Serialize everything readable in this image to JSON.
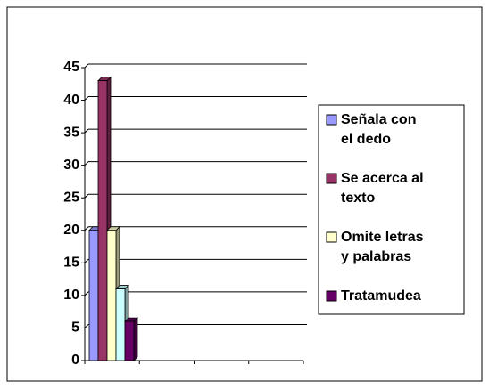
{
  "chart_data": {
    "type": "bar",
    "categories": [
      null,
      null,
      null,
      null
    ],
    "series": [
      {
        "name": "Señala con el dedo",
        "color": "#9999ff",
        "values": [
          20,
          null,
          null,
          null
        ]
      },
      {
        "name": "Se acerca al texto",
        "color": "#993366",
        "values": [
          43,
          null,
          null,
          null
        ]
      },
      {
        "name": "Omite letras y palabras",
        "color": "#ffffcc",
        "values": [
          20,
          null,
          null,
          null
        ]
      },
      {
        "color": "#ccffff",
        "values": [
          11,
          null,
          null,
          null
        ]
      },
      {
        "name": "Tratamudea",
        "color": "#660066",
        "values": [
          6,
          null,
          null,
          null
        ]
      }
    ],
    "ylim": [
      0,
      45
    ],
    "yticks": [
      0,
      5,
      10,
      15,
      20,
      25,
      30,
      35,
      40,
      45
    ],
    "grid": true,
    "legend": "right"
  }
}
